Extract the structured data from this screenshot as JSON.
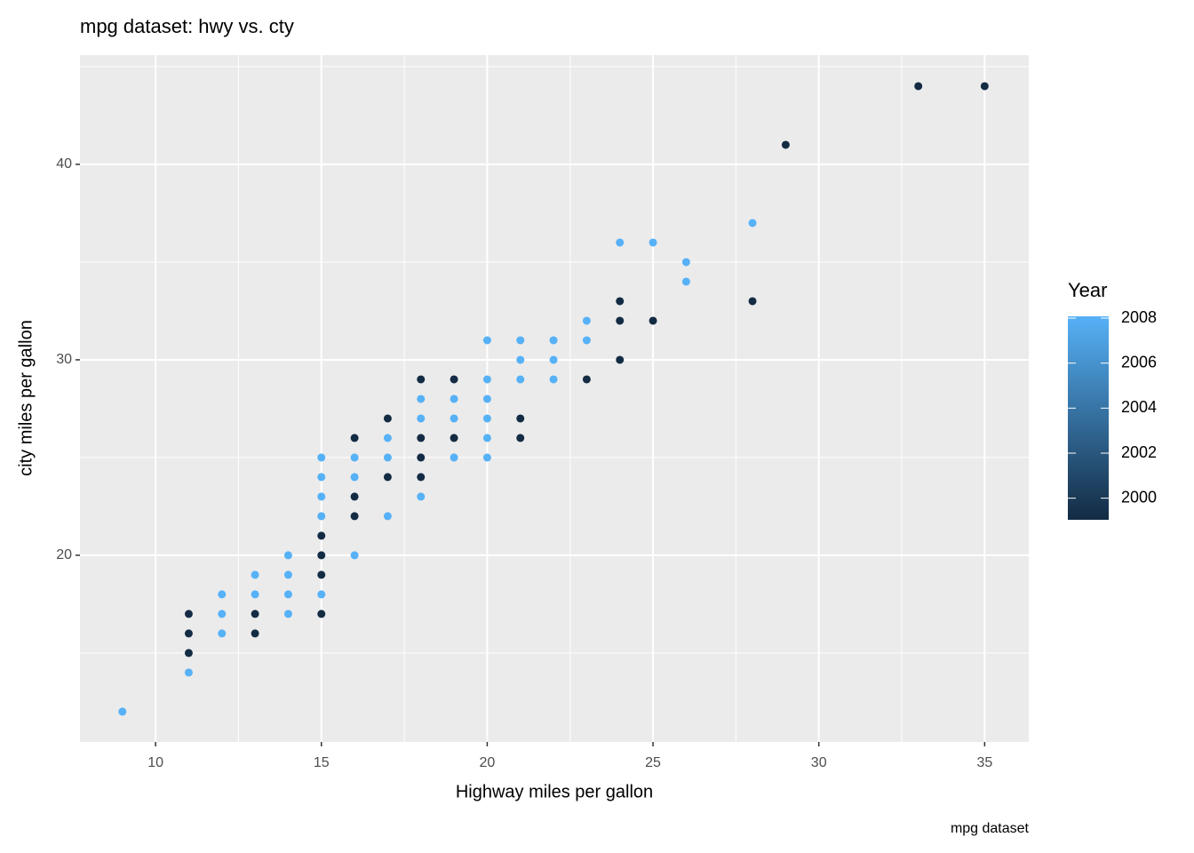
{
  "chart_data": {
    "type": "scatter",
    "title": "mpg dataset: hwy vs. cty",
    "x_label": "Highway miles per gallon",
    "y_label": "city miles per gallon",
    "caption": "mpg dataset",
    "x": [
      9,
      11,
      11,
      11,
      11,
      12,
      12,
      12,
      13,
      13,
      13,
      13,
      14,
      14,
      14,
      14,
      15,
      15,
      15,
      15,
      15,
      15,
      15,
      15,
      15,
      16,
      16,
      16,
      16,
      16,
      16,
      17,
      17,
      17,
      17,
      17,
      18,
      18,
      18,
      18,
      18,
      18,
      18,
      19,
      19,
      19,
      19,
      19,
      20,
      20,
      20,
      20,
      20,
      20,
      21,
      21,
      21,
      21,
      21,
      22,
      22,
      22,
      23,
      23,
      23,
      24,
      24,
      24,
      24,
      25,
      25,
      26,
      26,
      28,
      28,
      29,
      33,
      35
    ],
    "y": [
      12,
      17,
      16,
      15,
      14,
      18,
      17,
      16,
      19,
      18,
      17,
      16,
      20,
      19,
      18,
      17,
      25,
      24,
      23,
      22,
      21,
      20,
      19,
      18,
      17,
      26,
      25,
      24,
      23,
      22,
      20,
      27,
      26,
      25,
      24,
      22,
      29,
      28,
      27,
      26,
      25,
      24,
      23,
      29,
      28,
      27,
      26,
      25,
      31,
      29,
      28,
      27,
      26,
      25,
      31,
      30,
      29,
      27,
      26,
      31,
      30,
      29,
      32,
      31,
      29,
      36,
      33,
      32,
      30,
      36,
      32,
      35,
      34,
      37,
      33,
      41,
      44,
      44
    ],
    "color_title": "Year",
    "color_values": [
      2008,
      1999,
      1999,
      1999,
      2008,
      2008,
      2008,
      2008,
      2008,
      2008,
      1999,
      1999,
      2008,
      2008,
      2008,
      2008,
      2008,
      2008,
      2008,
      2008,
      1999,
      1999,
      1999,
      2008,
      1999,
      1999,
      2008,
      2008,
      1999,
      1999,
      2008,
      1999,
      2008,
      2008,
      1999,
      2008,
      1999,
      2008,
      2008,
      1999,
      1999,
      1999,
      2008,
      1999,
      2008,
      2008,
      1999,
      2008,
      2008,
      2008,
      2008,
      2008,
      2008,
      2008,
      2008,
      2008,
      2008,
      1999,
      1999,
      2008,
      2008,
      2008,
      2008,
      2008,
      1999,
      2008,
      1999,
      1999,
      1999,
      2008,
      1999,
      2008,
      2008,
      2008,
      1999,
      1999,
      1999,
      1999
    ],
    "color_low": "#132b43",
    "color_high": "#56b1f7",
    "color_lim": [
      1999,
      2008
    ],
    "color_ticks": [
      2000,
      2002,
      2004,
      2006,
      2008
    ],
    "xlim": [
      7.72,
      36.33
    ],
    "xticks": [
      10,
      15,
      20,
      25,
      30,
      35
    ],
    "ylim": [
      10.45,
      45.59
    ],
    "yticks": [
      20,
      30,
      40
    ],
    "grid": true
  }
}
